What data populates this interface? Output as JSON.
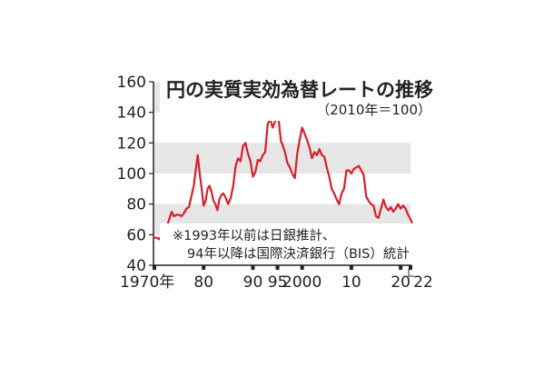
{
  "chart_data": {
    "type": "line",
    "title": "円の実質実効為替レートの推移",
    "subtitle": "（2010年＝100）",
    "note_line1": "※1993年以前は日銀推計、",
    "note_line2": "94年以降は国際決済銀行（BIS）統計",
    "ylim": [
      40,
      160
    ],
    "xlim": [
      1970,
      2022
    ],
    "y_ticks": [
      "160",
      "140",
      "120",
      "100",
      "80",
      "60",
      "40"
    ],
    "x_tick_labels": [
      {
        "x": 1970,
        "label": "1970年"
      },
      {
        "x": 1980,
        "label": "80"
      },
      {
        "x": 1990,
        "label": "90"
      },
      {
        "x": 1995,
        "label": "95"
      },
      {
        "x": 2000,
        "label": "2000"
      },
      {
        "x": 2010,
        "label": "10"
      },
      {
        "x": 2020,
        "label": "20"
      },
      {
        "x": 2022,
        "label": "22"
      }
    ],
    "grid_bands": true,
    "line_color": "#d7202a",
    "band_color": "#e6e6e6",
    "series": [
      {
        "values": [
          [
            1970.0,
            58
          ],
          [
            1970.5,
            58
          ],
          [
            1971.0,
            57
          ],
          [
            1971.5,
            60
          ],
          [
            1972.0,
            64
          ],
          [
            1972.5,
            65
          ],
          [
            1973.0,
            70
          ],
          [
            1973.5,
            75
          ],
          [
            1974.0,
            72
          ],
          [
            1974.5,
            73
          ],
          [
            1975.0,
            73
          ],
          [
            1975.5,
            72
          ],
          [
            1976.0,
            74
          ],
          [
            1976.5,
            77
          ],
          [
            1977.0,
            78
          ],
          [
            1977.5,
            85
          ],
          [
            1978.0,
            92
          ],
          [
            1978.3,
            100
          ],
          [
            1978.8,
            112
          ],
          [
            1979.2,
            100
          ],
          [
            1979.6,
            90
          ],
          [
            1980.0,
            79
          ],
          [
            1980.4,
            82
          ],
          [
            1980.8,
            90
          ],
          [
            1981.2,
            92
          ],
          [
            1981.6,
            88
          ],
          [
            1982.0,
            82
          ],
          [
            1982.4,
            80
          ],
          [
            1982.8,
            76
          ],
          [
            1983.2,
            83
          ],
          [
            1983.6,
            86
          ],
          [
            1984.0,
            87
          ],
          [
            1984.5,
            84
          ],
          [
            1985.0,
            80
          ],
          [
            1985.5,
            84
          ],
          [
            1986.0,
            92
          ],
          [
            1986.5,
            105
          ],
          [
            1987.0,
            110
          ],
          [
            1987.5,
            108
          ],
          [
            1988.0,
            118
          ],
          [
            1988.5,
            120
          ],
          [
            1989.0,
            113
          ],
          [
            1989.5,
            108
          ],
          [
            1990.0,
            98
          ],
          [
            1990.5,
            101
          ],
          [
            1991.0,
            109
          ],
          [
            1991.5,
            108
          ],
          [
            1992.0,
            112
          ],
          [
            1992.5,
            114
          ],
          [
            1993.0,
            132
          ],
          [
            1993.5,
            136
          ],
          [
            1994.0,
            130
          ],
          [
            1994.5,
            134
          ],
          [
            1995.0,
            149
          ],
          [
            1995.3,
            133
          ],
          [
            1995.7,
            121
          ],
          [
            1996.0,
            119
          ],
          [
            1996.5,
            114
          ],
          [
            1997.0,
            107
          ],
          [
            1997.5,
            104
          ],
          [
            1998.0,
            100
          ],
          [
            1998.5,
            97
          ],
          [
            1999.0,
            113
          ],
          [
            1999.5,
            122
          ],
          [
            2000.0,
            130
          ],
          [
            2000.5,
            126
          ],
          [
            2001.0,
            122
          ],
          [
            2001.5,
            117
          ],
          [
            2002.0,
            110
          ],
          [
            2002.5,
            114
          ],
          [
            2003.0,
            112
          ],
          [
            2003.5,
            116
          ],
          [
            2004.0,
            112
          ],
          [
            2004.5,
            111
          ],
          [
            2005.0,
            104
          ],
          [
            2005.5,
            98
          ],
          [
            2006.0,
            90
          ],
          [
            2006.5,
            87
          ],
          [
            2007.0,
            83
          ],
          [
            2007.5,
            80
          ],
          [
            2008.0,
            87
          ],
          [
            2008.5,
            90
          ],
          [
            2009.0,
            102
          ],
          [
            2009.5,
            102
          ],
          [
            2010.0,
            100
          ],
          [
            2010.5,
            103
          ],
          [
            2011.0,
            104
          ],
          [
            2011.5,
            105
          ],
          [
            2012.0,
            102
          ],
          [
            2012.5,
            99
          ],
          [
            2013.0,
            85
          ],
          [
            2013.5,
            82
          ],
          [
            2014.0,
            80
          ],
          [
            2014.5,
            79
          ],
          [
            2015.0,
            72
          ],
          [
            2015.5,
            71
          ],
          [
            2016.0,
            77
          ],
          [
            2016.5,
            83
          ],
          [
            2017.0,
            78
          ],
          [
            2017.5,
            76
          ],
          [
            2018.0,
            78
          ],
          [
            2018.5,
            75
          ],
          [
            2019.0,
            77
          ],
          [
            2019.5,
            80
          ],
          [
            2020.0,
            77
          ],
          [
            2020.5,
            79
          ],
          [
            2021.0,
            77
          ],
          [
            2021.5,
            73
          ],
          [
            2022.0,
            70
          ],
          [
            2022.3,
            68
          ]
        ]
      }
    ]
  }
}
